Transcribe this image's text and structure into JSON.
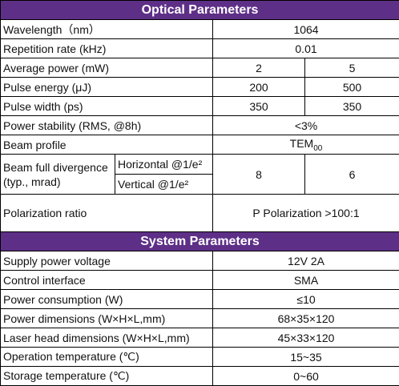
{
  "optical": {
    "title": "Optical Parameters",
    "rows": [
      [
        "Wavelength（nm）",
        "1064"
      ],
      [
        "Repetition rate (kHz)",
        "0.01"
      ],
      [
        "Average power (mW)",
        "2",
        "5"
      ],
      [
        "Pulse energy (μJ)",
        "200",
        "500"
      ],
      [
        "Pulse width (ps)",
        "350",
        "350"
      ],
      [
        "Power stability (RMS, @8h)",
        "<3%"
      ]
    ],
    "beam_profile": {
      "label": "Beam profile",
      "value": "TEM",
      "subscript": "00"
    },
    "divergence": {
      "label": "Beam full divergence (typ., mrad)",
      "horizontal": "Horizontal @1/e²",
      "vertical": "Vertical @1/e²",
      "values": [
        "8",
        "6"
      ]
    },
    "polarization": [
      "Polarization ratio",
      "P Polarization >100:1"
    ]
  },
  "system": {
    "title": "System Parameters",
    "rows": [
      [
        "Supply power voltage",
        "12V 2A"
      ],
      [
        "Control interface",
        "SMA"
      ],
      [
        "Power consumption (W)",
        "≤10"
      ],
      [
        "Power dimensions (W×H×L,mm)",
        "68×35×120"
      ],
      [
        "Laser head dimensions (W×H×L,mm)",
        "45×33×120"
      ],
      [
        "Operation temperature (℃)",
        "15~35"
      ],
      [
        "Storage temperature (℃)",
        "0~60"
      ]
    ]
  }
}
